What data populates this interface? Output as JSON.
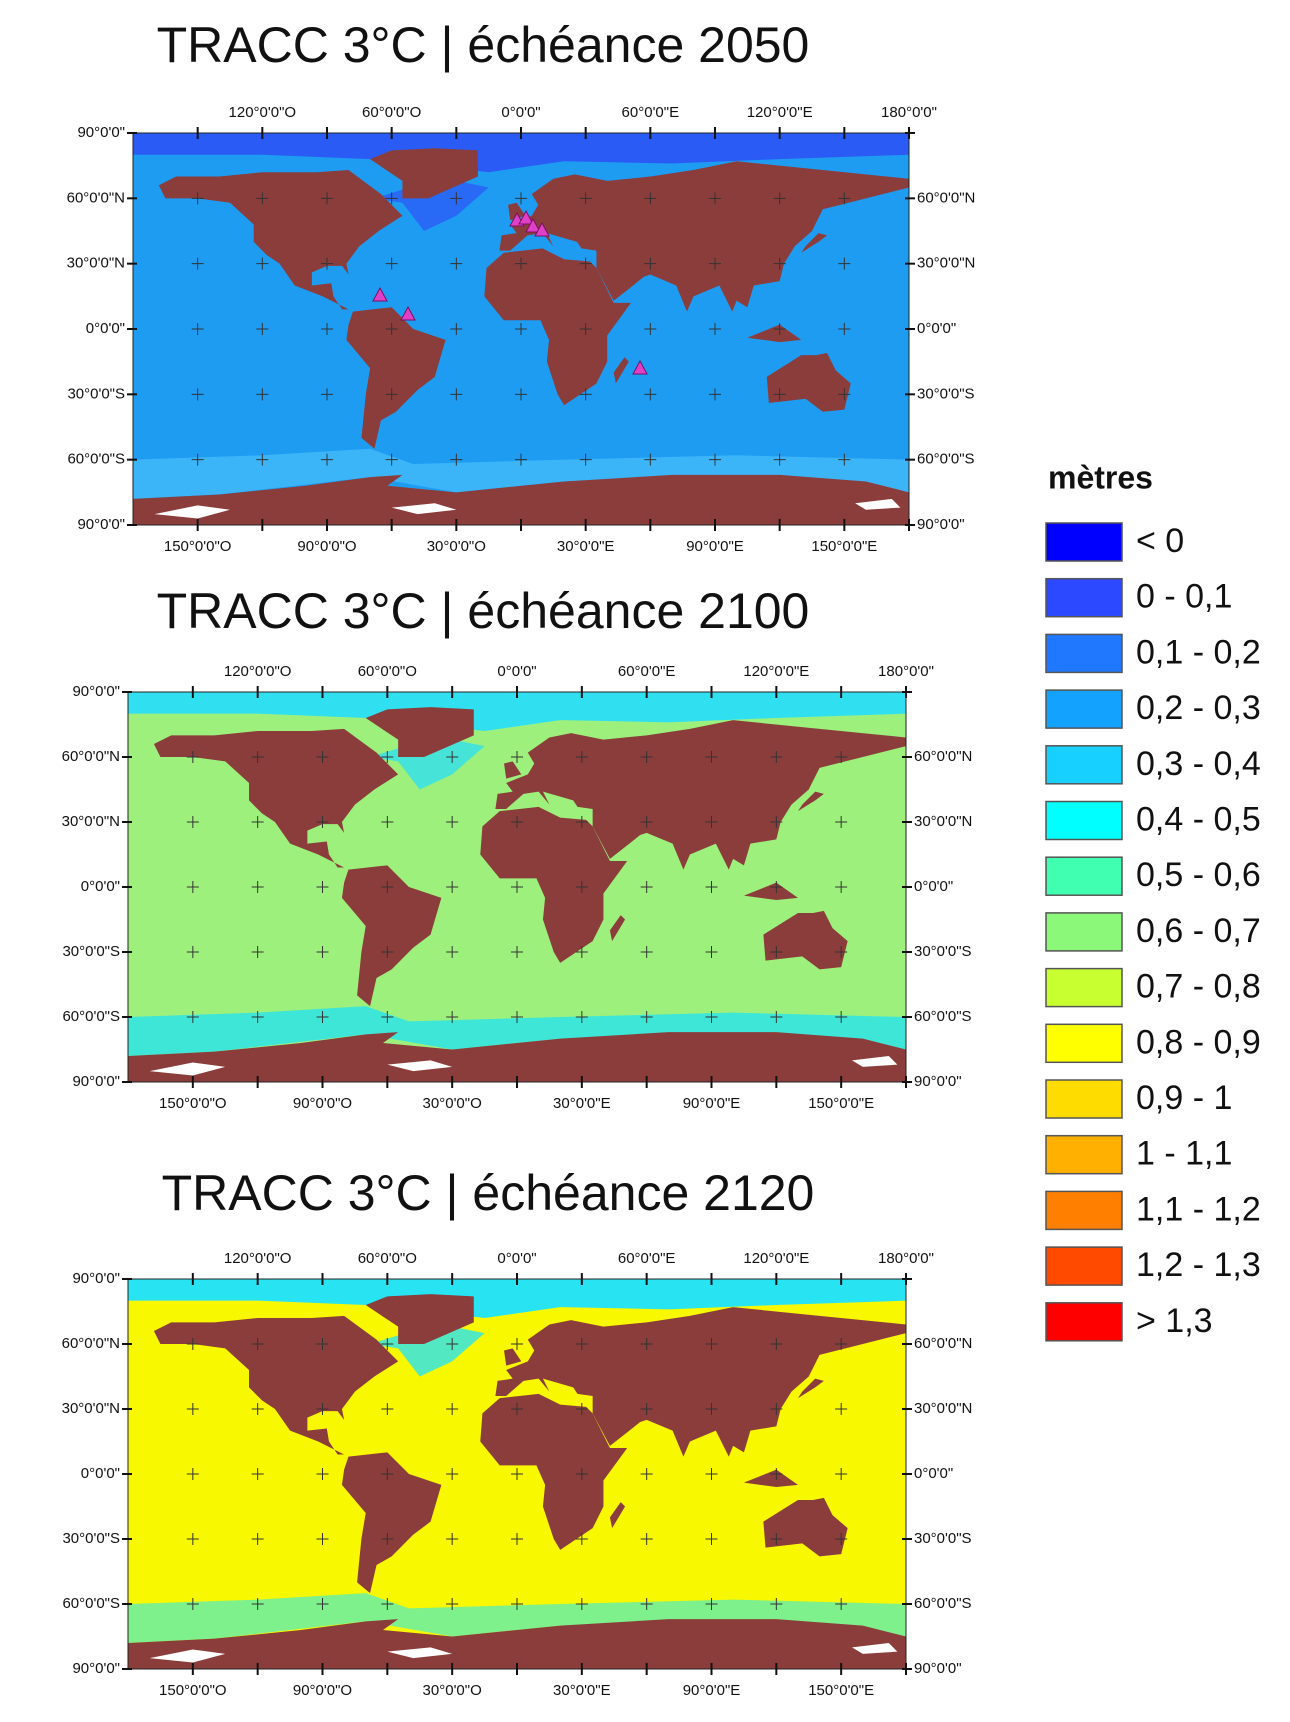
{
  "maps": [
    {
      "title": "TRACC 3°C | échéance 2050",
      "ocean_color": "#1e9cf2",
      "north_color": "#2a5cf5",
      "south_color": "#3bb4f8"
    },
    {
      "title": "TRACC 3°C | échéance 2100",
      "ocean_color": "#9ef07c",
      "north_color": "#30e0f0",
      "south_color": "#3ee6d8"
    },
    {
      "title": "TRACC 3°C | échéance 2120",
      "ocean_color": "#f8f800",
      "north_color": "#28e4f2",
      "south_color": "#7ef08c"
    }
  ],
  "axes": {
    "top_labels": [
      "120°0'0\"O",
      "60°0'0\"O",
      "0°0'0\"",
      "60°0'0\"E",
      "120°0'0\"E",
      "180°0'0\""
    ],
    "bottom_labels": [
      "150°0'0\"O",
      "90°0'0\"O",
      "30°0'0\"O",
      "30°0'0\"E",
      "90°0'0\"E",
      "150°0'0\"E"
    ],
    "left_labels": [
      "90°0'0\"",
      "60°0'0\"N",
      "30°0'0\"N",
      "0°0'0\"",
      "30°0'0\"S",
      "60°0'0\"S",
      "90°0'0\""
    ],
    "right_labels": [
      "60°0'0\"N",
      "30°0'0\"N",
      "0°0'0\"",
      "30°0'0\"S",
      "60°0'0\"S",
      "90°0'0\""
    ]
  },
  "legend": {
    "title": "mètres",
    "items": [
      {
        "label": "< 0",
        "color": "#0000ff"
      },
      {
        "label": "0 - 0,1",
        "color": "#2c49ff"
      },
      {
        "label": "0,1 - 0,2",
        "color": "#1f78ff"
      },
      {
        "label": "0,2 - 0,3",
        "color": "#13a3ff"
      },
      {
        "label": "0,3 - 0,4",
        "color": "#18d0ff"
      },
      {
        "label": "0,4 - 0,5",
        "color": "#00ffff"
      },
      {
        "label": "0,5 - 0,6",
        "color": "#40ffb0"
      },
      {
        "label": "0,6 - 0,7",
        "color": "#8cf87a"
      },
      {
        "label": "0,7 - 0,8",
        "color": "#c8ff30"
      },
      {
        "label": "0,8 - 0,9",
        "color": "#ffff00"
      },
      {
        "label": "0,9 - 1",
        "color": "#ffdc00"
      },
      {
        "label": "1 - 1,1",
        "color": "#ffb000"
      },
      {
        "label": "1,1 - 1,2",
        "color": "#ff8000"
      },
      {
        "label": "1,2 - 1,3",
        "color": "#ff4a00"
      },
      {
        "label": "> 1,3",
        "color": "#ff0000"
      }
    ]
  }
}
